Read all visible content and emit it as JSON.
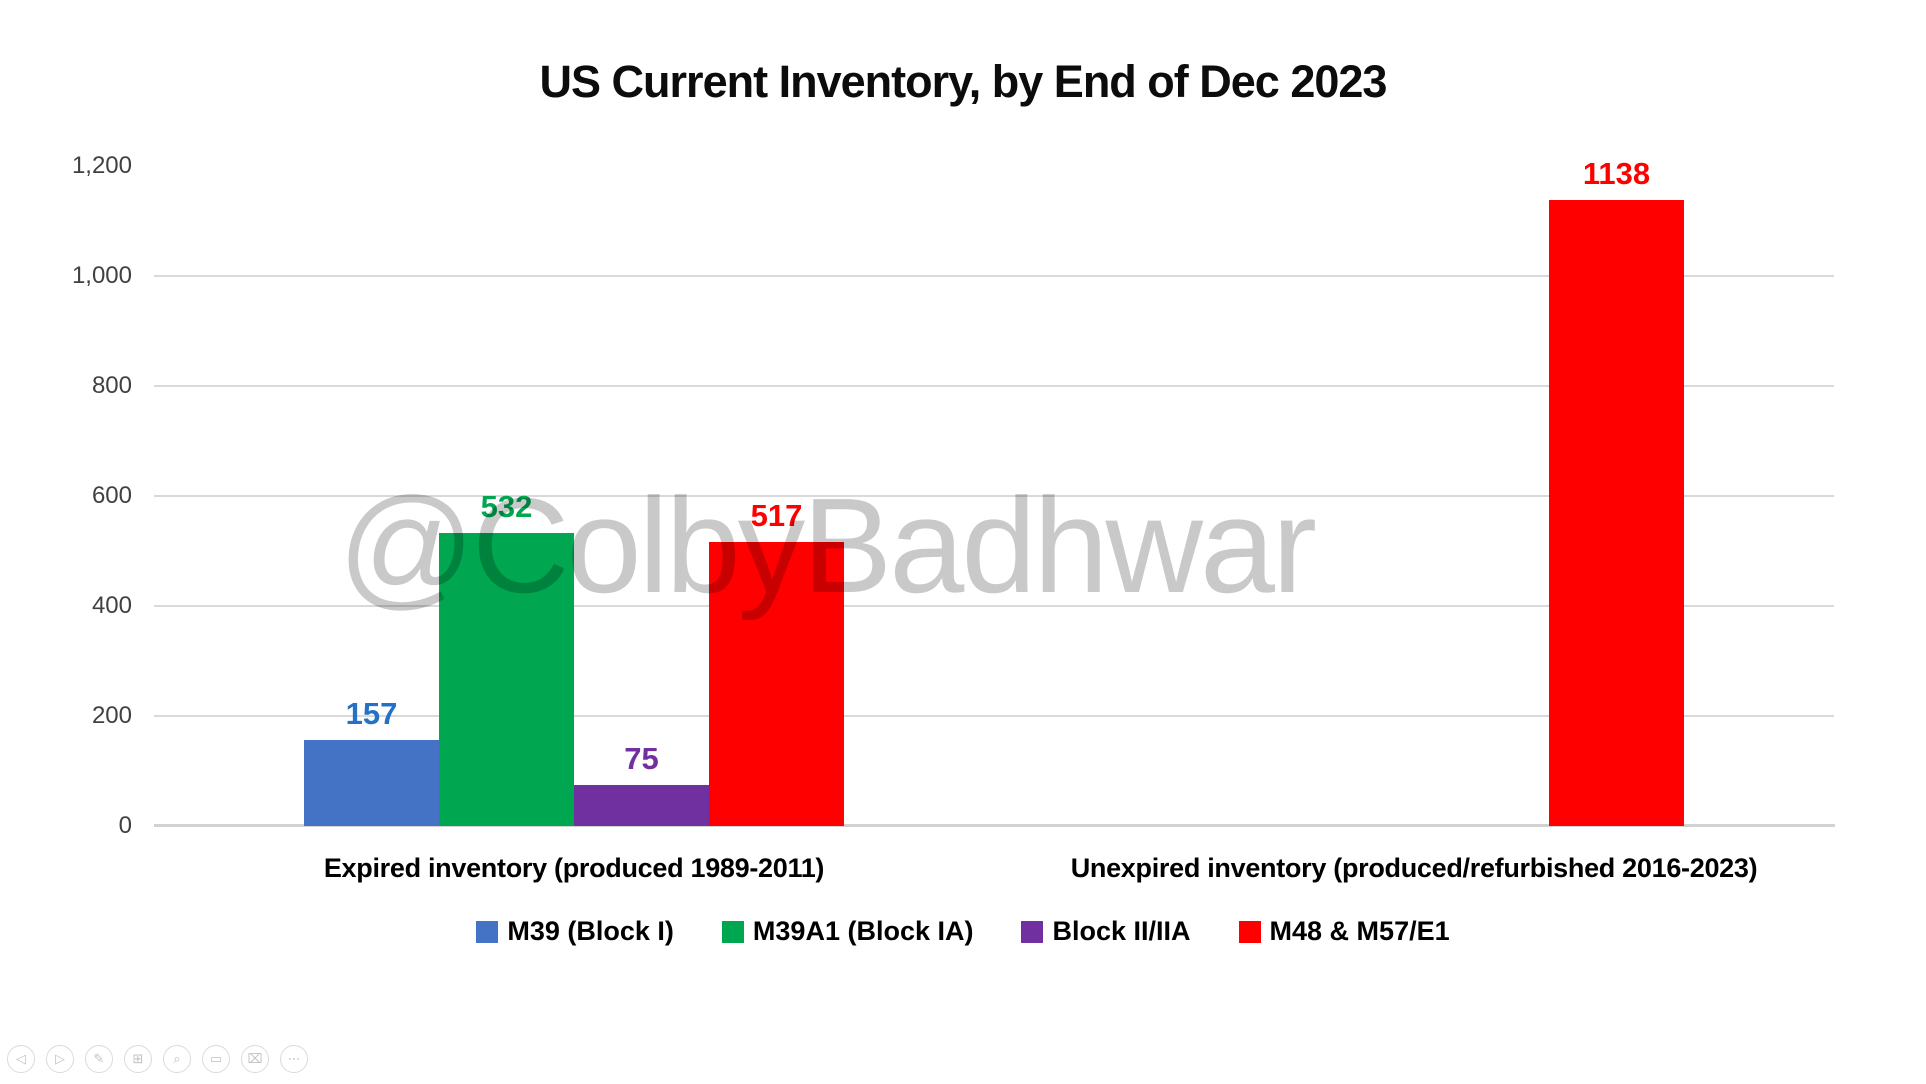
{
  "title": "US Current Inventory, by End of Dec 2023",
  "watermark": "@ColbyBadhwar",
  "chart_data": {
    "type": "bar",
    "title": "US Current Inventory, by End of Dec 2023",
    "categories": [
      "Expired inventory (produced 1989-2011)",
      "Unexpired inventory (produced/refurbished 2016-2023)"
    ],
    "series": [
      {
        "name": "M39 (Block I)",
        "color": "#4472C4",
        "label_color": "#2472C8",
        "values": [
          157,
          null
        ]
      },
      {
        "name": "M39A1 (Block IA)",
        "color": "#00A650",
        "label_color": "#00A650",
        "values": [
          532,
          null
        ]
      },
      {
        "name": "Block II/IIA",
        "color": "#7030A0",
        "label_color": "#7030A0",
        "values": [
          75,
          null
        ]
      },
      {
        "name": "M48 & M57/E1",
        "color": "#FF0000",
        "label_color": "#FF0000",
        "values": [
          517,
          1138
        ]
      }
    ],
    "y_ticks": [
      {
        "label": "1,200",
        "value": 1200
      },
      {
        "label": "1,000",
        "value": 1000
      },
      {
        "label": "800",
        "value": 800
      },
      {
        "label": "600",
        "value": 600
      },
      {
        "label": "400",
        "value": 400
      },
      {
        "label": "200",
        "value": 200
      },
      {
        "label": "0",
        "value": 0
      }
    ],
    "ylim": [
      0,
      1200
    ],
    "grid": "horizontal-major",
    "legend_position": "bottom",
    "data_labels": "above-bars"
  },
  "presenter_controls": {
    "items": [
      {
        "name": "previous-slide",
        "glyph": "◁"
      },
      {
        "name": "next-slide",
        "glyph": "▷"
      },
      {
        "name": "pen-tools",
        "glyph": "✎"
      },
      {
        "name": "see-all-slides",
        "glyph": "⊞"
      },
      {
        "name": "zoom-slide",
        "glyph": "⌕"
      },
      {
        "name": "captions",
        "glyph": "▭"
      },
      {
        "name": "camera-off",
        "glyph": "⌧"
      },
      {
        "name": "more-options",
        "glyph": "⋯"
      }
    ]
  }
}
